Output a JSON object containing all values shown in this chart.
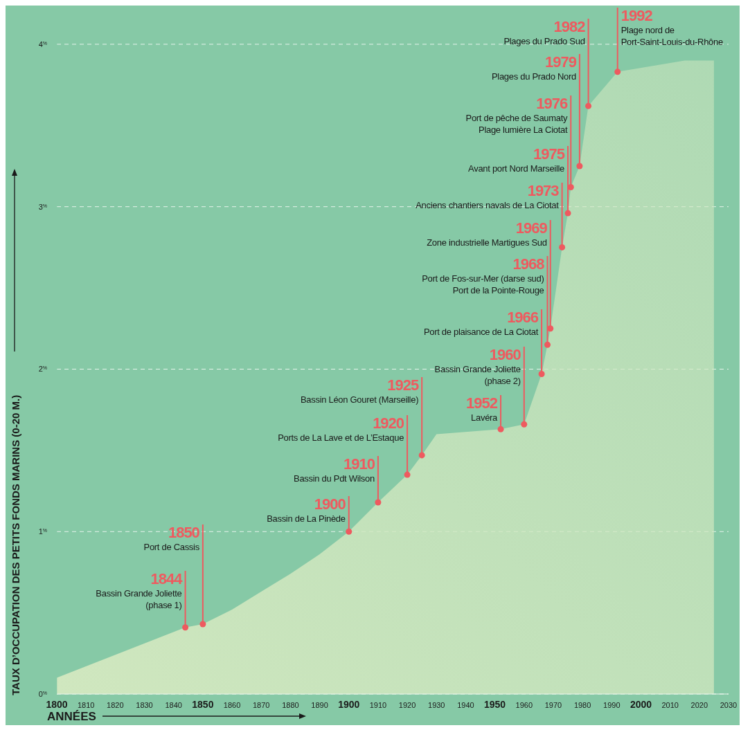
{
  "chart_data": {
    "type": "area",
    "xlabel": "ANNÉES",
    "ylabel": "TAUX D’OCCUPATION DES PETITS FONDS MARINS (0-20 M.)",
    "x": [
      1800,
      1844,
      1850,
      1860,
      1870,
      1880,
      1890,
      1900,
      1910,
      1920,
      1925,
      1930,
      1952,
      1960,
      1966,
      1968,
      1969,
      1973,
      1975,
      1976,
      1979,
      1982,
      1992,
      2015,
      2025
    ],
    "series": [
      {
        "color": "#d0e7bf",
        "values": [
          0.1,
          0.41,
          0.43,
          0.52,
          0.63,
          0.74,
          0.86,
          1.0,
          1.18,
          1.35,
          1.47,
          1.6,
          1.63,
          1.66,
          1.97,
          2.15,
          2.25,
          2.75,
          2.96,
          3.12,
          3.25,
          3.62,
          3.83,
          3.9,
          3.9
        ]
      }
    ],
    "xlim": [
      1800,
      2030
    ],
    "xticks": [
      1800,
      1810,
      1820,
      1830,
      1840,
      1850,
      1860,
      1870,
      1880,
      1890,
      1900,
      1910,
      1920,
      1930,
      1940,
      1950,
      1960,
      1970,
      1980,
      1990,
      2000,
      2010,
      2020,
      2030
    ],
    "ylim": [
      0,
      4.2
    ],
    "yticks": [
      {
        "value": 0,
        "label": "0$^{%}$"
      },
      {
        "value": 1,
        "label": "1$^{%}$"
      },
      {
        "value": 2,
        "label": "2$^{%}$"
      },
      {
        "value": 3,
        "label": "3$^{%}$"
      },
      {
        "value": 4,
        "label": "4$^{%}$"
      }
    ],
    "grid": "y",
    "legend": false,
    "annotations": [
      {
        "text": "1844\nBassin Grande Joliette\n(phase 1)",
        "x": 1844,
        "y": 0.41
      },
      {
        "text": "1850\nPort de Cassis",
        "x": 1850,
        "y": 0.43
      },
      {
        "text": "1900\nBassin de La Pinède",
        "x": 1900,
        "y": 1.0
      },
      {
        "text": "1910\nBassin du Pdt Wilson",
        "x": 1910,
        "y": 1.18
      },
      {
        "text": "1920\nPorts de La Lave et de L’Estaque",
        "x": 1920,
        "y": 1.35
      },
      {
        "text": "1925\nBassin Léon Gouret (Marseille)",
        "x": 1925,
        "y": 1.47
      },
      {
        "text": "1952\nLavéra",
        "x": 1952,
        "y": 1.63
      },
      {
        "text": "1960\nBassin Grande Joliette\n(phase 2)",
        "x": 1960,
        "y": 1.66
      },
      {
        "text": "1966\nPort de plaisance de La Ciotat",
        "x": 1966,
        "y": 1.97
      },
      {
        "text": "1968\nPort de Fos-sur-Mer (darse sud)\nPort de la Pointe-Rouge",
        "x": 1968,
        "y": 2.15
      },
      {
        "text": "1969\nZone industrielle Martigues Sud",
        "x": 1969,
        "y": 2.25
      },
      {
        "text": "1973\nAnciens chantiers navals de La Ciotat",
        "x": 1973,
        "y": 2.75
      },
      {
        "text": "1975\nAvant port Nord Marseille",
        "x": 1975,
        "y": 2.96
      },
      {
        "text": "1976\nPort de pêche de Saumaty\nPlage lumière La Ciotat",
        "x": 1976,
        "y": 3.12
      },
      {
        "text": "1979\nPlages du Prado Nord",
        "x": 1979,
        "y": 3.25
      },
      {
        "text": "1982\nPlages du Prado Sud",
        "x": 1982,
        "y": 3.62
      },
      {
        "text": "1992\nPlage nord de\nPort-Saint-Louis-du-Rhône",
        "x": 1992,
        "y": 3.83
      }
    ]
  }
}
